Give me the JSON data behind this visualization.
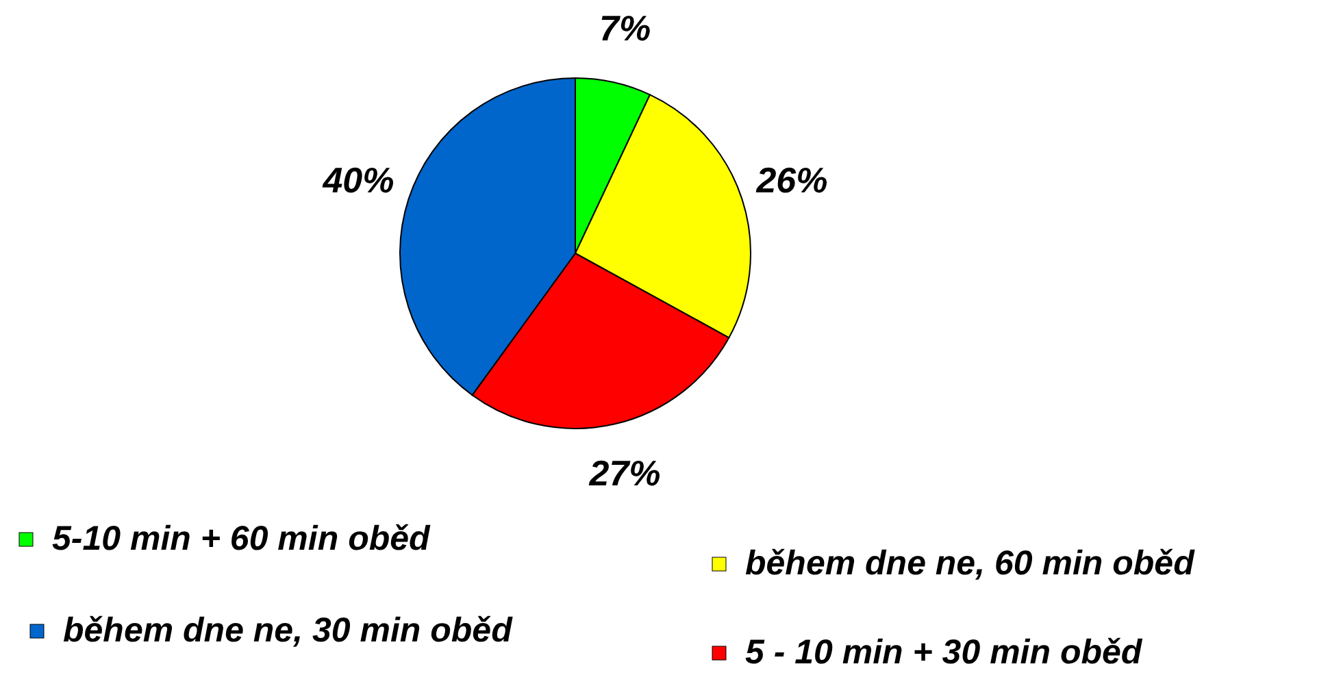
{
  "chart_data": {
    "type": "pie",
    "categories": [
      "5-10 min + 60 min oběd",
      "během dne ne, 60 min oběd",
      "5 - 10 min + 30 min oběd",
      "během dne ne, 30 min oběd"
    ],
    "values": [
      7,
      26,
      27,
      40
    ],
    "colors": [
      "#00ff00",
      "#ffff00",
      "#ff0000",
      "#0066cc"
    ],
    "value_labels": [
      "7%",
      "26%",
      "27%",
      "40%"
    ],
    "legend": "bottom"
  }
}
